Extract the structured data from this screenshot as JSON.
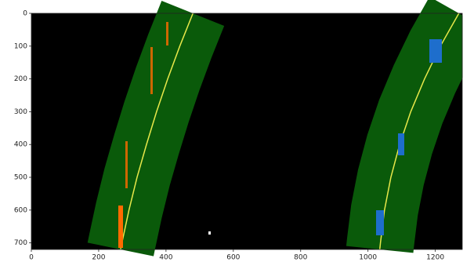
{
  "chart_data": {
    "type": "lane-image",
    "y": [
      0,
      100,
      200,
      300,
      400,
      500,
      600,
      700,
      720
    ],
    "series": [
      {
        "color": "#e8e84a",
        "values": [
          480,
          441,
          405,
          372,
          342,
          314,
          290,
          269,
          265
        ]
      },
      {
        "color": "#e8e84a",
        "values": [
          1270,
          1215,
          1168,
          1127,
          1094,
          1068,
          1049,
          1037,
          1035
        ]
      }
    ],
    "band_color": "#0a5a0a",
    "xlim": [
      0,
      1280
    ],
    "ylim": [
      720,
      0
    ],
    "xticks": [
      0,
      200,
      400,
      600,
      800,
      1000,
      1200
    ],
    "yticks": [
      0,
      100,
      200,
      300,
      400,
      500,
      600,
      700
    ]
  }
}
